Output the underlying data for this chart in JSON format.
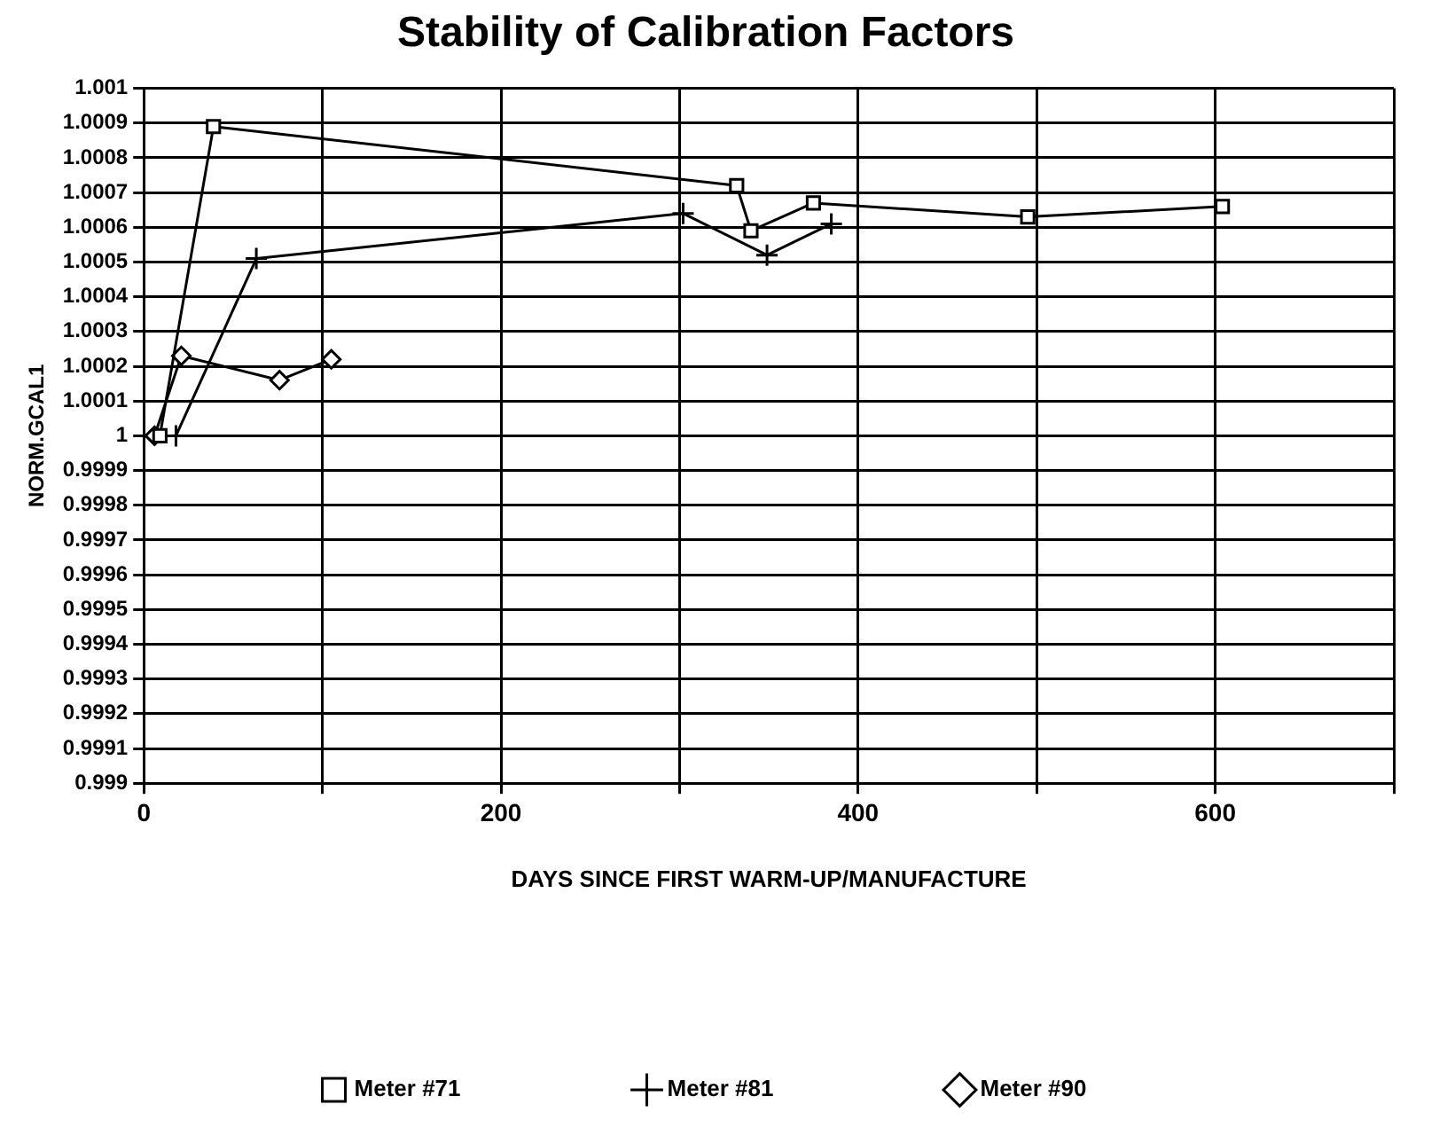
{
  "chart_data": {
    "type": "line",
    "title": "Stability of Calibration Factors",
    "xlabel": "DAYS SINCE FIRST WARM-UP/MANUFACTURE",
    "ylabel": "NORM.GCAL1",
    "series": [
      {
        "name": "Meter #71",
        "color": "#000000",
        "marker": "square",
        "x": [
          9,
          39,
          332,
          340,
          375,
          495,
          604
        ],
        "values": [
          1,
          1.00089,
          1.00072,
          1.00059,
          1.00067,
          1.00063,
          1.00066
        ]
      },
      {
        "name": "Meter #81",
        "color": "#000000",
        "marker": "cross",
        "x": [
          18,
          63,
          302,
          349,
          385
        ],
        "values": [
          1,
          1.00051,
          1.00064,
          1.00052,
          1.00061
        ]
      },
      {
        "name": "Meter #90",
        "color": "#000000",
        "marker": "diamond",
        "x": [
          6,
          21,
          76,
          105
        ],
        "values": [
          1,
          1.00023,
          1.00016,
          1.00022
        ]
      }
    ],
    "xlim": [
      0,
      700
    ],
    "xticks": [
      0,
      {
        "value": 100,
        "label": null
      },
      200,
      {
        "value": 300,
        "label": null
      },
      400,
      {
        "value": 500,
        "label": null
      },
      600,
      {
        "value": 700,
        "label": null
      }
    ],
    "ylim": [
      0.999,
      1.001
    ],
    "yticks": [
      0.999,
      0.9991,
      0.9992,
      0.9993,
      0.9994,
      0.9995,
      0.9996,
      0.9997,
      0.9998,
      0.9999,
      1,
      1.0001,
      1.0002,
      1.0003,
      1.0004,
      1.0005,
      1.0006,
      1.0007,
      1.0008,
      1.0009,
      1.001
    ],
    "grid": true,
    "legend": "bottom",
    "line_style": "solid"
  }
}
